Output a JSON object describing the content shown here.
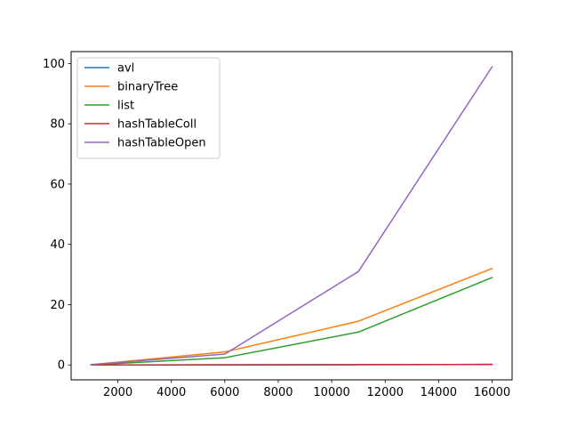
{
  "chart_data": {
    "type": "line",
    "title": "",
    "xlabel": "",
    "ylabel": "",
    "xlim": [
      250,
      16750
    ],
    "ylim": [
      -4.95,
      103.95
    ],
    "grid": false,
    "legend_position": "top-left",
    "x": [
      1000,
      6000,
      11000,
      16000
    ],
    "x_ticks": [
      2000,
      4000,
      6000,
      8000,
      10000,
      12000,
      14000,
      16000
    ],
    "y_ticks": [
      0,
      20,
      40,
      60,
      80,
      100
    ],
    "series": [
      {
        "name": "avl",
        "color": "#1f77b4",
        "values": [
          0.0,
          0.05,
          0.1,
          0.15
        ]
      },
      {
        "name": "binaryTree",
        "color": "#ff7f0e",
        "values": [
          0.1,
          4.3,
          14.5,
          32.0
        ]
      },
      {
        "name": "list",
        "color": "#2ca02c",
        "values": [
          0.0,
          2.4,
          10.9,
          29.0
        ]
      },
      {
        "name": "hashTableColl",
        "color": "#d62728",
        "values": [
          0.0,
          0.0,
          0.05,
          0.2
        ]
      },
      {
        "name": "hashTableOpen",
        "color": "#9467bd",
        "values": [
          0.1,
          3.6,
          31.0,
          98.9
        ]
      }
    ]
  }
}
